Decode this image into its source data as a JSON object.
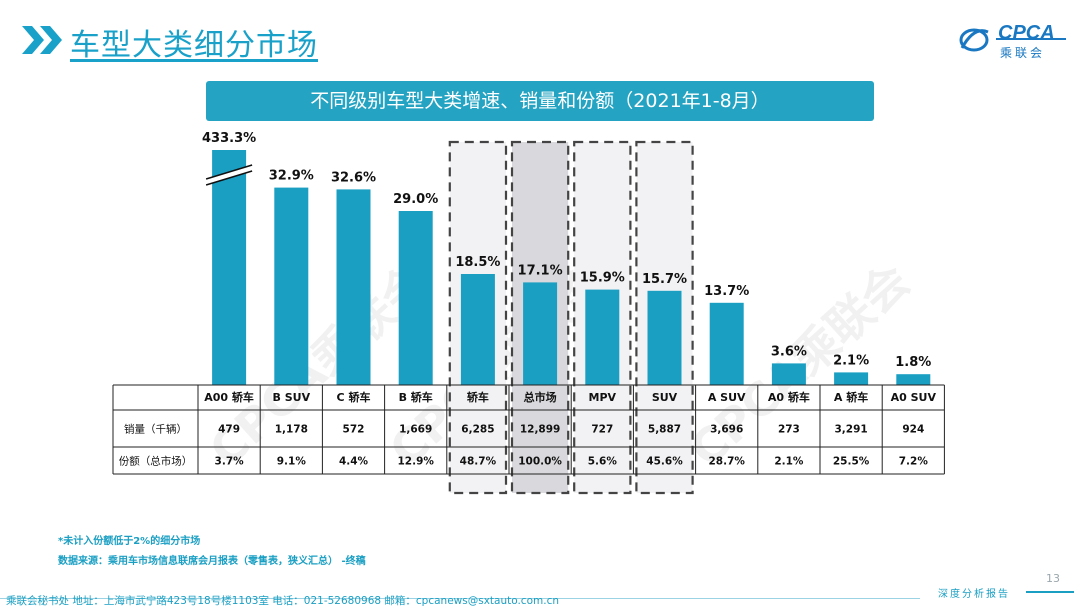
{
  "header": {
    "title": "车型大类细分市场",
    "logo_text": "CPCA",
    "logo_sub": "乘联会"
  },
  "banner_title": "不同级别车型大类增速、销量和份额（2021年1-8月）",
  "watermark": "CPCA乘联会",
  "chart_data": {
    "type": "bar",
    "title": "不同级别车型大类增速、销量和份额（2021年1-8月）",
    "categories": [
      "A00 轿车",
      "B SUV",
      "C 轿车",
      "B 轿车",
      "轿车",
      "总市场",
      "MPV",
      "SUV",
      "A SUV",
      "A0 轿车",
      "A 轿车",
      "A0 SUV"
    ],
    "growth_pct": [
      433.3,
      32.9,
      32.6,
      29.0,
      18.5,
      17.1,
      15.9,
      15.7,
      13.7,
      3.6,
      2.1,
      1.8
    ],
    "growth_labels": [
      "433.3%",
      "32.9%",
      "32.6%",
      "29.0%",
      "18.5%",
      "17.1%",
      "15.9%",
      "15.7%",
      "13.7%",
      "3.6%",
      "2.1%",
      "1.8%"
    ],
    "axis_break_category": "A00 轿车",
    "highlighted_categories": [
      "轿车",
      "总市场",
      "MPV",
      "SUV"
    ],
    "table_rows": [
      {
        "label": "销量（千辆）",
        "values": [
          "479",
          "1,178",
          "572",
          "1,669",
          "6,285",
          "12,899",
          "727",
          "5,887",
          "3,696",
          "273",
          "3,291",
          "924"
        ]
      },
      {
        "label": "份额（总市场）",
        "values": [
          "3.7%",
          "9.1%",
          "4.4%",
          "12.9%",
          "48.7%",
          "100.0%",
          "5.6%",
          "45.6%",
          "28.7%",
          "2.1%",
          "25.5%",
          "7.2%"
        ]
      }
    ],
    "bar_color": "#1a9fc3"
  },
  "notes": {
    "note1": "*未计入份额低于2%的细分市场",
    "note2": "数据来源：乘用车市场信息联席会月报表（零售表，狭义汇总） -终稿"
  },
  "footer": {
    "text": "乘联会秘书处   地址：上海市武宁路423号18号楼1103室  电话：021-52680968   邮箱：cpcanews@sxtauto.com.cn",
    "right": "深度分析报告",
    "page_number": "13"
  }
}
